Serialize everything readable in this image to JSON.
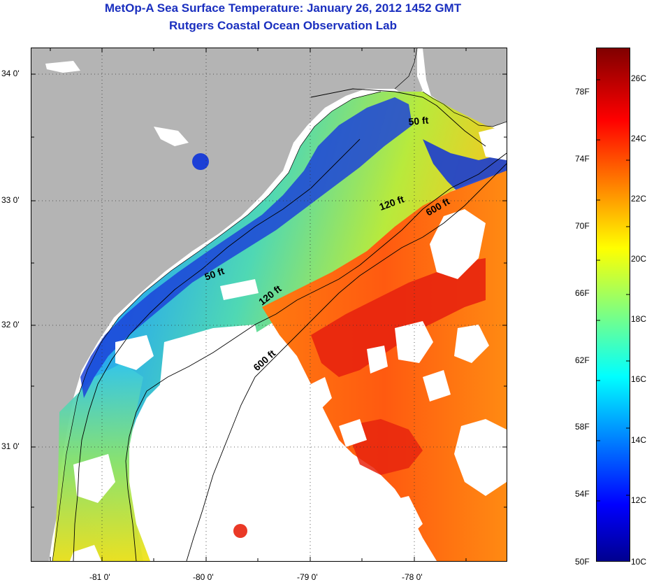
{
  "title_line1": "MetOp-A Sea Surface Temperature:  January 26, 2012 1452 GMT",
  "title_line2": "Rutgers Coastal Ocean Observation Lab",
  "map": {
    "lat_ticks": [
      "34 0'",
      "33 0'",
      "32 0'",
      "31 0'"
    ],
    "lon_ticks": [
      "-81 0'",
      "-80 0'",
      "-79 0'",
      "-78 0'"
    ],
    "contour_labels": [
      "50 ft",
      "120 ft",
      "600 ft",
      "50 ft",
      "120 ft",
      "600 ft"
    ],
    "land_color": "#b4b4b4",
    "cloud_color": "#ffffff"
  },
  "colorbar": {
    "fahrenheit_labels": [
      "78F",
      "74F",
      "70F",
      "66F",
      "62F",
      "58F",
      "54F",
      "50F"
    ],
    "celsius_labels": [
      "26C",
      "24C",
      "22C",
      "20C",
      "18C",
      "16C",
      "14C",
      "12C",
      "10C"
    ],
    "colormap": "jet",
    "range_c": [
      10,
      27
    ]
  }
}
